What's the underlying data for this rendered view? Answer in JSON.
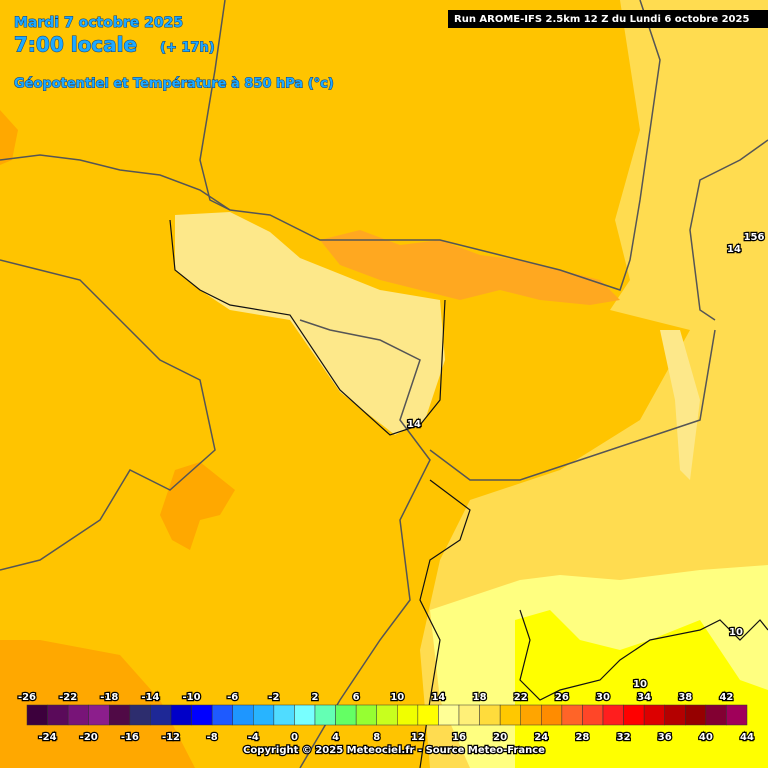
{
  "header": {
    "date": "Mardi 7 octobre 2025",
    "time": "7:00 locale",
    "lead": "(+ 17h)",
    "parameter": "Géopotentiel et Température à 850 hPa (°c)",
    "run": "Run AROME-IFS 2.5km 12 Z du Lundi 6 octobre 2025"
  },
  "contour_labels": [
    "14",
    "156",
    "14",
    "10",
    "10"
  ],
  "color_scale": {
    "top_labels": [
      -26,
      -22,
      -18,
      -14,
      -10,
      -6,
      -2,
      2,
      6,
      10,
      14,
      18,
      22,
      26,
      30,
      34,
      38,
      42
    ],
    "bottom_labels": [
      -24,
      -20,
      -16,
      -12,
      -8,
      -4,
      0,
      4,
      8,
      12,
      16,
      20,
      24,
      28,
      32,
      36,
      40,
      44
    ],
    "colors": [
      "#3c003c",
      "#5a0a5a",
      "#781478",
      "#8c1e8c",
      "#500a46",
      "#2d2d6e",
      "#1e2896",
      "#0000c8",
      "#0000ff",
      "#1e5aff",
      "#1e96ff",
      "#28b4ff",
      "#50dcff",
      "#78ffff",
      "#64ffb4",
      "#64ff64",
      "#96ff32",
      "#c8ff1e",
      "#f0ff00",
      "#ffff00",
      "#ffff96",
      "#fff078",
      "#ffdc3c",
      "#ffc800",
      "#ffa500",
      "#ff8c00",
      "#ff6428",
      "#ff4628",
      "#ff1e1e",
      "#ff0000",
      "#dc0000",
      "#b40000",
      "#960000",
      "#820032",
      "#a0005a"
    ]
  },
  "copyright": "Copyright © 2025 Meteociel.fr - Source Meteo-France"
}
